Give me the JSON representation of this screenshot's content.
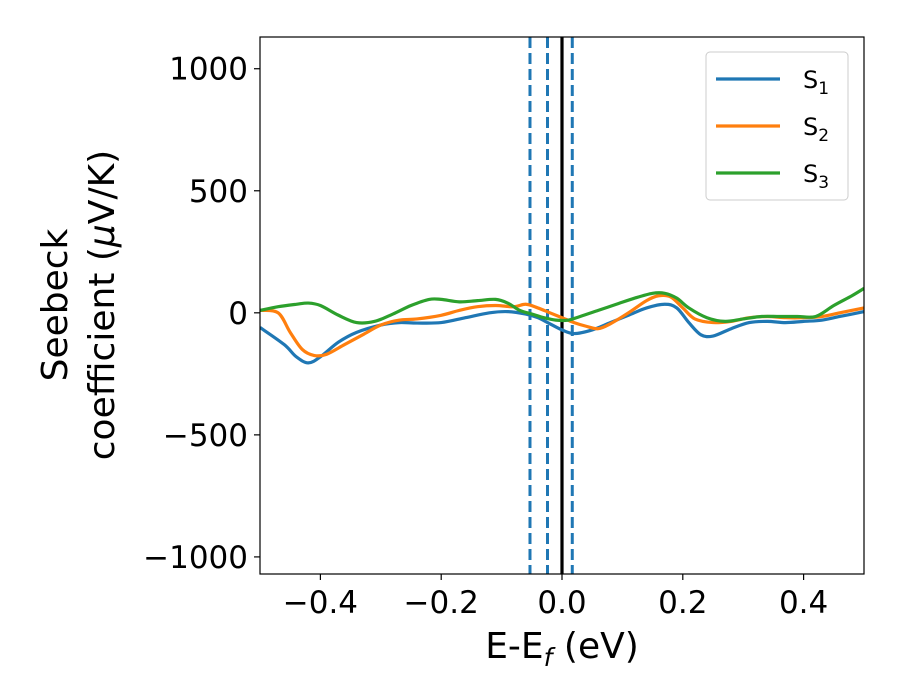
{
  "chart_data": {
    "type": "line",
    "xlabel": "E-E",
    "xlabel_sub": "f",
    "xlabel_unit": " (eV)",
    "ylabel_line1": "Seebeck",
    "ylabel_line2_prefix": "coefficient  (",
    "ylabel_mu": "μ",
    "ylabel_unit": "V/K)",
    "xlim": [
      -0.5,
      0.5
    ],
    "ylim": [
      -1070,
      1130
    ],
    "xticks": [
      -0.4,
      -0.2,
      0.0,
      0.2,
      0.4
    ],
    "xtick_labels": [
      "−0.4",
      "−0.2",
      "0.0",
      "0.2",
      "0.4"
    ],
    "yticks": [
      -1000,
      -500,
      0,
      500,
      1000
    ],
    "ytick_labels": [
      "−1000",
      "−500",
      "0",
      "500",
      "1000"
    ],
    "grid": false,
    "legend_position": "top-right",
    "vertical_lines": [
      {
        "x": -0.053,
        "style": "dashed",
        "color": "#1f77b4"
      },
      {
        "x": -0.024,
        "style": "dashed",
        "color": "#1f77b4"
      },
      {
        "x": 0.0,
        "style": "solid",
        "color": "#000000"
      },
      {
        "x": 0.017,
        "style": "dashed",
        "color": "#1f77b4"
      }
    ],
    "series": [
      {
        "name": "S",
        "sub": "1",
        "color": "#1f77b4",
        "x": [
          -0.5,
          -0.46,
          -0.44,
          -0.42,
          -0.4,
          -0.37,
          -0.34,
          -0.3,
          -0.27,
          -0.24,
          -0.2,
          -0.16,
          -0.12,
          -0.09,
          -0.06,
          -0.04,
          -0.02,
          0.0,
          0.02,
          0.05,
          0.08,
          0.11,
          0.14,
          0.17,
          0.19,
          0.21,
          0.23,
          0.25,
          0.28,
          0.31,
          0.34,
          0.37,
          0.4,
          0.43,
          0.46,
          0.5
        ],
        "y": [
          -60,
          -130,
          -180,
          -205,
          -180,
          -120,
          -80,
          -50,
          -40,
          -42,
          -40,
          -20,
          0,
          5,
          -5,
          -20,
          -45,
          -70,
          -85,
          -70,
          -40,
          -10,
          20,
          35,
          20,
          -40,
          -90,
          -95,
          -65,
          -40,
          -35,
          -40,
          -35,
          -30,
          -15,
          5
        ]
      },
      {
        "name": "S",
        "sub": "2",
        "color": "#ff7f0e",
        "x": [
          -0.5,
          -0.47,
          -0.45,
          -0.43,
          -0.41,
          -0.39,
          -0.36,
          -0.33,
          -0.3,
          -0.27,
          -0.24,
          -0.2,
          -0.17,
          -0.14,
          -0.11,
          -0.08,
          -0.06,
          -0.04,
          -0.02,
          0.0,
          0.02,
          0.04,
          0.06,
          0.08,
          0.11,
          0.14,
          0.16,
          0.18,
          0.2,
          0.22,
          0.25,
          0.28,
          0.31,
          0.34,
          0.37,
          0.4,
          0.43,
          0.46,
          0.5
        ],
        "y": [
          10,
          0,
          -80,
          -150,
          -175,
          -170,
          -130,
          -90,
          -50,
          -30,
          -25,
          -10,
          10,
          25,
          30,
          25,
          35,
          20,
          0,
          -20,
          -40,
          -55,
          -65,
          -45,
          0,
          50,
          70,
          65,
          20,
          -25,
          -40,
          -35,
          -20,
          -15,
          -20,
          -20,
          -15,
          0,
          20
        ]
      },
      {
        "name": "S",
        "sub": "3",
        "color": "#2ca02c",
        "x": [
          -0.5,
          -0.47,
          -0.44,
          -0.42,
          -0.4,
          -0.37,
          -0.34,
          -0.31,
          -0.28,
          -0.25,
          -0.22,
          -0.2,
          -0.17,
          -0.14,
          -0.11,
          -0.09,
          -0.07,
          -0.05,
          -0.03,
          -0.01,
          0.01,
          0.03,
          0.06,
          0.09,
          0.12,
          0.15,
          0.17,
          0.19,
          0.21,
          0.24,
          0.27,
          0.3,
          0.33,
          0.36,
          0.39,
          0.42,
          0.45,
          0.48,
          0.5
        ],
        "y": [
          10,
          25,
          35,
          40,
          30,
          -10,
          -40,
          -35,
          -5,
          30,
          55,
          55,
          45,
          50,
          55,
          40,
          10,
          -5,
          -20,
          -30,
          -30,
          -15,
          10,
          35,
          60,
          80,
          80,
          60,
          20,
          -20,
          -35,
          -25,
          -15,
          -15,
          -15,
          -15,
          30,
          70,
          100
        ]
      }
    ]
  }
}
